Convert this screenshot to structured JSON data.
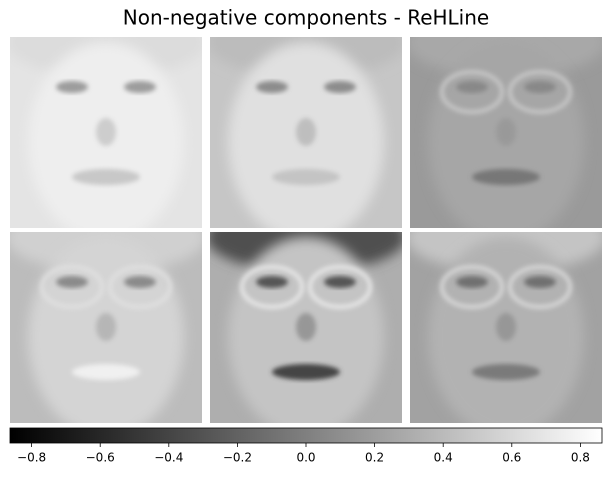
{
  "chart_data": {
    "type": "image-grid",
    "title": "Non-negative components - ReHLine",
    "colormap": "gray",
    "clim": [
      -0.863,
      0.863
    ],
    "cticks": [
      {
        "value": -0.8,
        "label": "−0.8"
      },
      {
        "value": -0.6,
        "label": "−0.6"
      },
      {
        "value": -0.4,
        "label": "−0.4"
      },
      {
        "value": -0.2,
        "label": "−0.2"
      },
      {
        "value": 0.0,
        "label": "0.0"
      },
      {
        "value": 0.2,
        "label": "0.2"
      },
      {
        "value": 0.4,
        "label": "0.4"
      },
      {
        "value": 0.6,
        "label": "0.6"
      },
      {
        "value": 0.8,
        "label": "0.8"
      }
    ]
  }
}
